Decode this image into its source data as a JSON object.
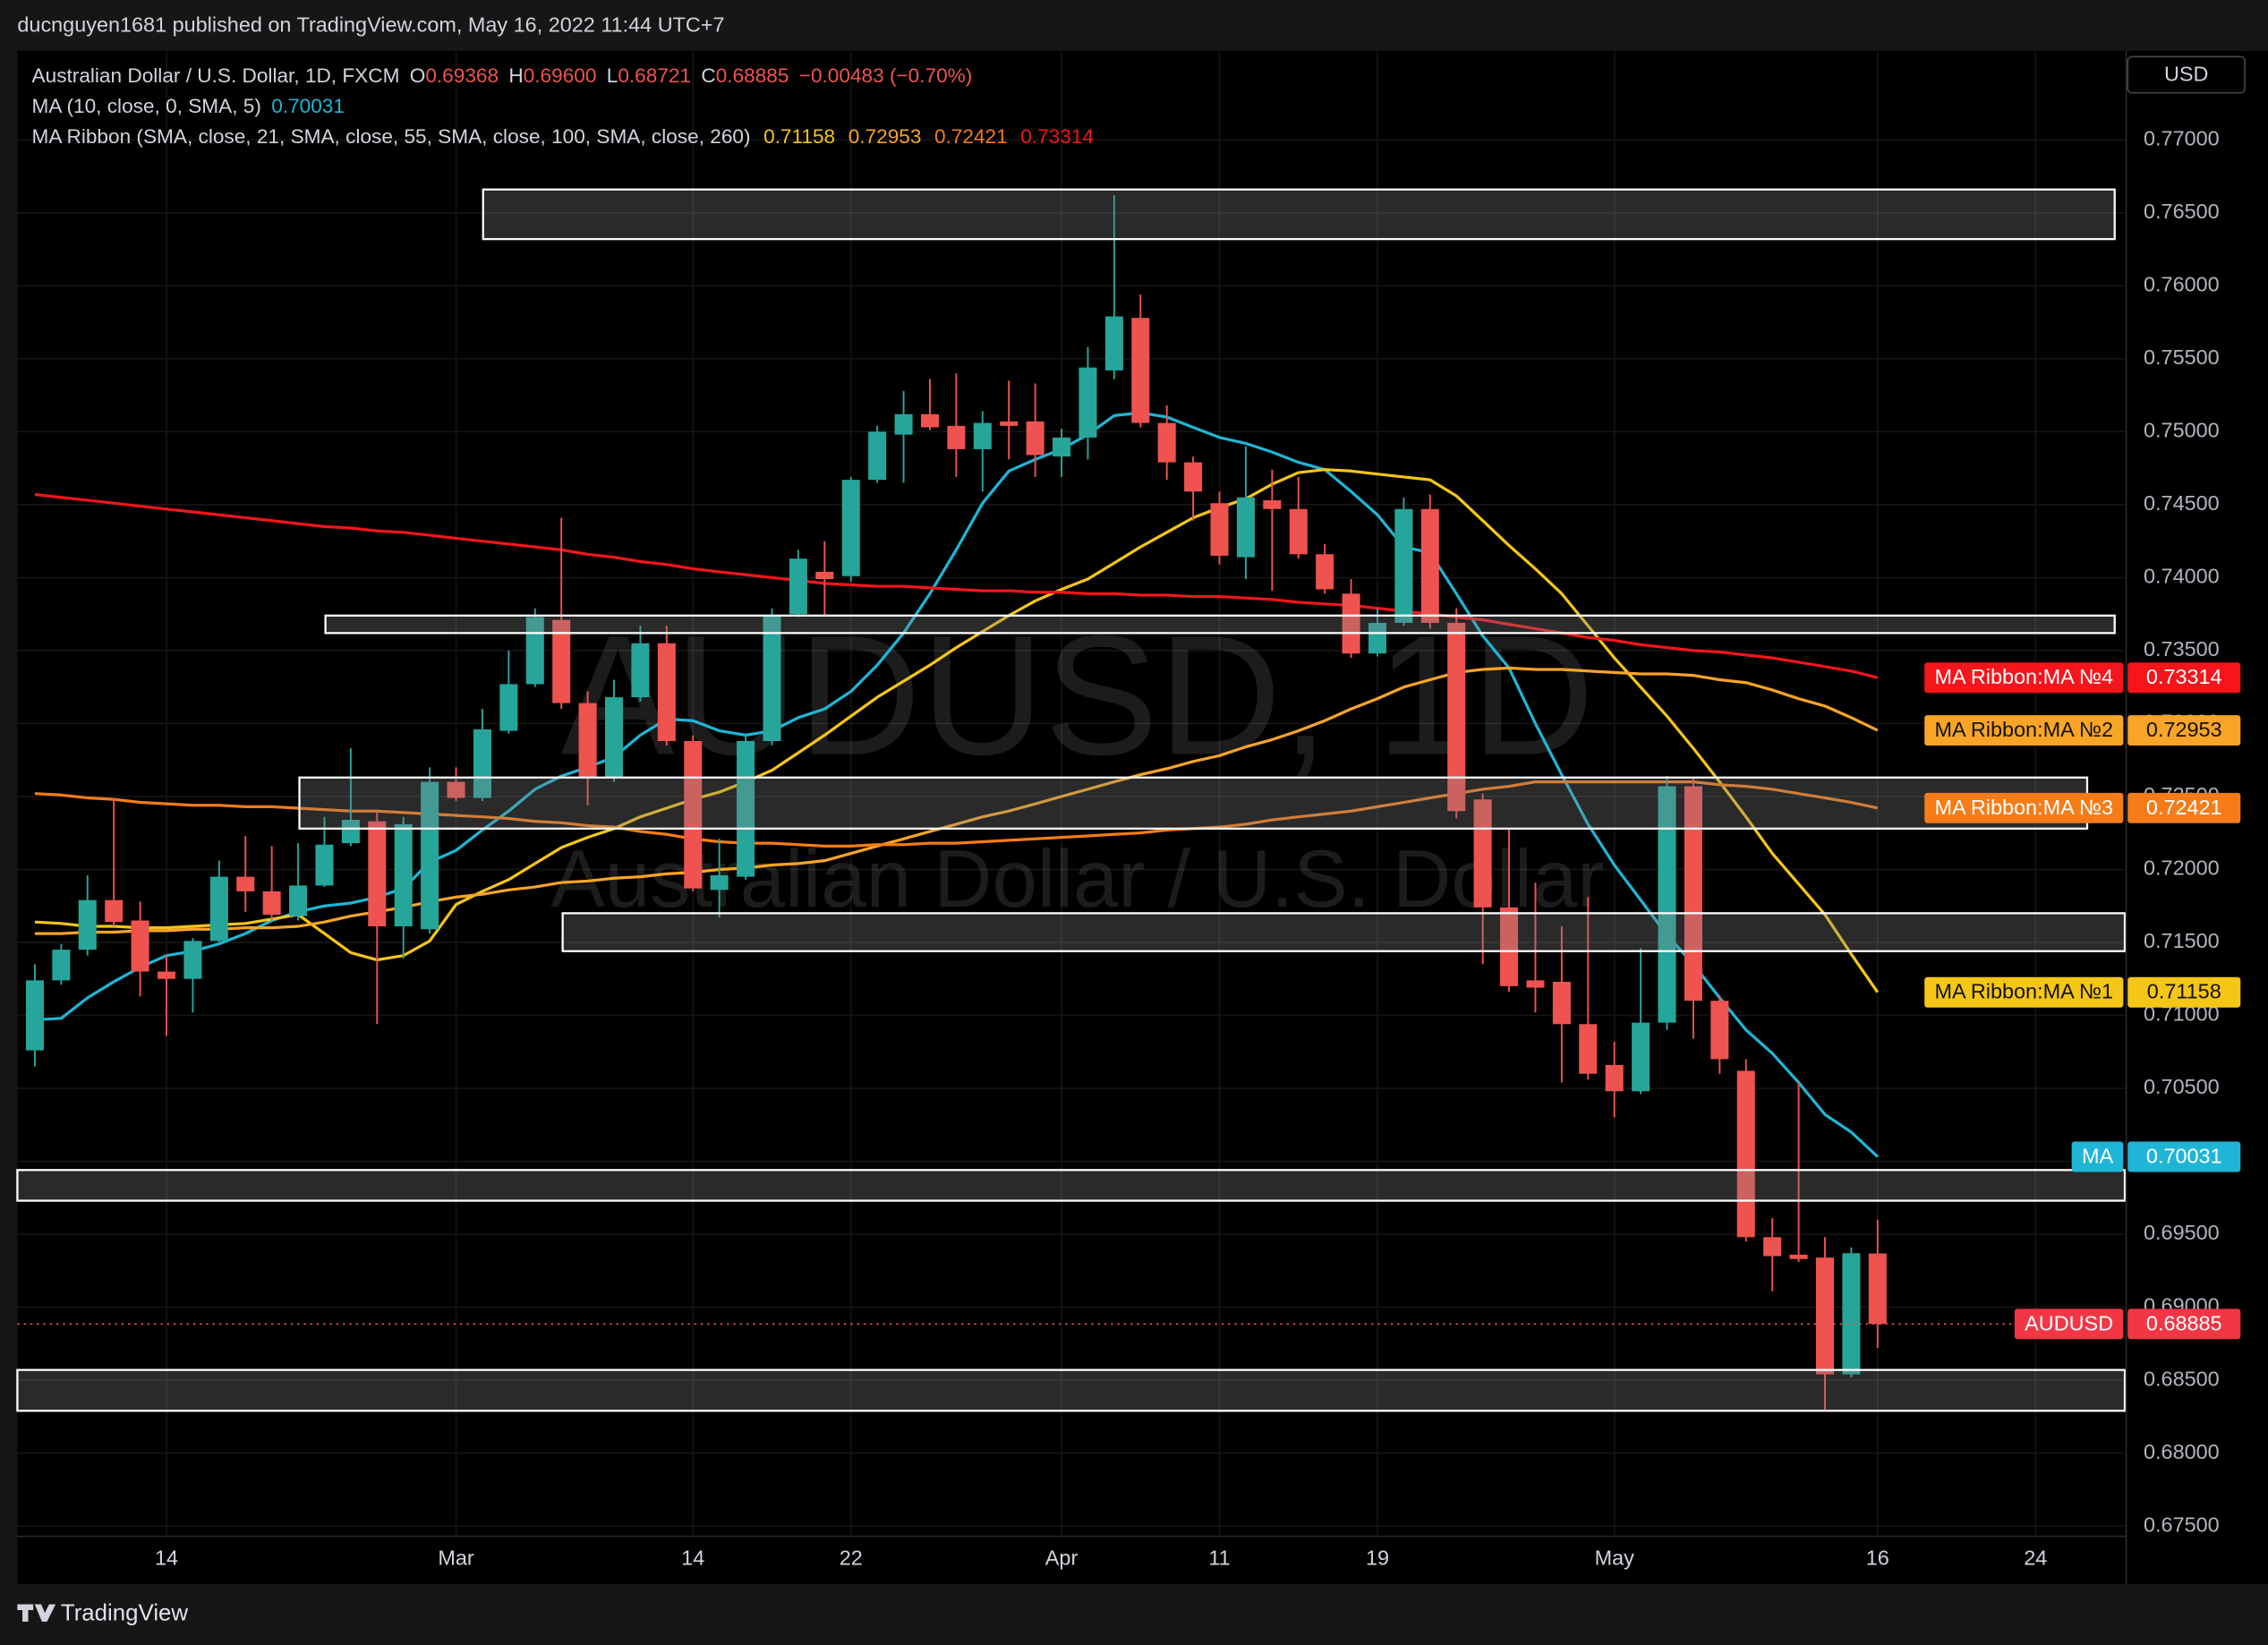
{
  "publisher_line": "ducnguyen1681 published on TradingView.com, May 16, 2022 11:44 UTC+7",
  "footer_brand": "TradingView",
  "chart_data": {
    "type": "candlestick",
    "title": "Australian Dollar / U.S. Dollar, 1D, FXCM",
    "symbol": "AUDUSD",
    "currency": "USD",
    "watermark": "AUDUSD, 1D",
    "watermark_subtitle": "Australian Dollar / U.S. Dollar",
    "ohlc_letters": [
      "O",
      "H",
      "L",
      "C"
    ],
    "last_high_label": "0.69600",
    "change_label": "−0.00483 (−0.70%)",
    "ma_legend": "MA (10, close, 0, SMA, 5)",
    "ribbon_legend": "MA Ribbon (SMA, close, 21, SMA, close, 55, SMA, close, 100, SMA, close, 260)",
    "up_color": "#26a69a",
    "down_color": "#ef5350",
    "grid": true,
    "categories": [
      null,
      null,
      null,
      null,
      null,
      "14",
      null,
      null,
      null,
      null,
      null,
      null,
      null,
      null,
      null,
      null,
      "Mar",
      null,
      null,
      null,
      null,
      null,
      null,
      null,
      null,
      "14",
      null,
      null,
      null,
      null,
      null,
      "22",
      null,
      null,
      null,
      null,
      null,
      null,
      null,
      "Apr",
      null,
      null,
      null,
      null,
      null,
      "11",
      null,
      null,
      null,
      null,
      null,
      "19",
      null,
      null,
      null,
      null,
      null,
      null,
      null,
      null,
      "May",
      null,
      null,
      null,
      null,
      null,
      null,
      null,
      null,
      null,
      "16",
      null,
      null,
      null,
      null,
      null,
      "24",
      null,
      null,
      null
    ],
    "open": [
      0.7076,
      0.7124,
      0.7145,
      0.7179,
      0.7165,
      0.713,
      0.7125,
      0.7151,
      0.7195,
      0.7185,
      0.7168,
      0.7189,
      0.7218,
      0.7233,
      0.7161,
      0.7159,
      0.726,
      0.7249,
      0.7295,
      0.7327,
      0.7371,
      0.7314,
      0.7263,
      0.7318,
      0.7355,
      0.7288,
      0.7186,
      0.7195,
      0.7288,
      0.7375,
      0.7404,
      0.7401,
      0.7467,
      0.7498,
      0.7512,
      0.7504,
      0.7488,
      0.7507,
      0.7507,
      0.7483,
      0.7496,
      0.7542,
      0.7578,
      0.7506,
      0.7479,
      0.7451,
      0.7414,
      0.7453,
      0.7447,
      0.7416,
      0.7389,
      0.7348,
      0.7369,
      0.7447,
      0.7369,
      0.7248,
      0.7174,
      0.7124,
      0.7123,
      0.7094,
      0.7066,
      0.7048,
      0.7095,
      0.7257,
      0.711,
      0.7062,
      0.6948,
      0.6936,
      0.6934,
      0.6854,
      0.69368,
      null,
      null,
      null,
      null,
      null,
      null,
      null,
      null,
      null
    ],
    "high": [
      0.7135,
      0.7149,
      0.7196,
      0.7249,
      0.7178,
      0.7141,
      0.7153,
      0.7206,
      0.7223,
      0.7216,
      0.7218,
      0.7236,
      0.7283,
      0.724,
      0.7236,
      0.727,
      0.727,
      0.731,
      0.735,
      0.7379,
      0.7441,
      0.7322,
      0.733,
      0.7367,
      0.7367,
      0.7292,
      0.7221,
      0.7293,
      0.7379,
      0.7419,
      0.7425,
      0.7469,
      0.7504,
      0.7528,
      0.7536,
      0.754,
      0.7514,
      0.7535,
      0.7533,
      0.7502,
      0.7558,
      0.7662,
      0.7594,
      0.7518,
      0.7483,
      0.7459,
      0.749,
      0.7474,
      0.7469,
      0.7423,
      0.7399,
      0.7379,
      0.7455,
      0.7457,
      0.7379,
      0.7252,
      0.7228,
      0.7191,
      0.7161,
      0.7181,
      0.7082,
      0.7146,
      0.7264,
      0.7263,
      0.7114,
      0.707,
      0.6961,
      0.7054,
      0.6948,
      0.6941,
      0.696,
      null,
      null,
      null,
      null,
      null,
      null,
      null,
      null,
      null
    ],
    "low": [
      0.7065,
      0.7121,
      0.7141,
      0.7161,
      0.7113,
      0.7086,
      0.7102,
      0.7149,
      0.7171,
      0.7165,
      0.7165,
      0.7188,
      0.7216,
      0.7094,
      0.7139,
      0.7156,
      0.7247,
      0.7247,
      0.7293,
      0.7325,
      0.731,
      0.7244,
      0.726,
      0.7315,
      0.7285,
      0.7185,
      0.7167,
      0.7193,
      0.7285,
      0.7373,
      0.7374,
      0.7397,
      0.7465,
      0.7465,
      0.7501,
      0.7469,
      0.7459,
      0.7481,
      0.7469,
      0.7469,
      0.7481,
      0.7536,
      0.7503,
      0.7467,
      0.7439,
      0.7409,
      0.7399,
      0.7391,
      0.7413,
      0.7389,
      0.7345,
      0.7346,
      0.7367,
      0.7365,
      0.7235,
      0.7135,
      0.7116,
      0.7102,
      0.7054,
      0.7056,
      0.703,
      0.7046,
      0.709,
      0.7084,
      0.706,
      0.6945,
      0.6911,
      0.6931,
      0.6829,
      0.6852,
      0.68721,
      null,
      null,
      null,
      null,
      null,
      null,
      null,
      null,
      null
    ],
    "close": [
      0.7124,
      0.7145,
      0.7179,
      0.7164,
      0.713,
      0.7125,
      0.7151,
      0.7195,
      0.7185,
      0.7169,
      0.7189,
      0.7217,
      0.7234,
      0.7161,
      0.7231,
      0.726,
      0.7249,
      0.7296,
      0.7327,
      0.7373,
      0.7314,
      0.7263,
      0.7318,
      0.7355,
      0.7288,
      0.7187,
      0.7196,
      0.7288,
      0.7374,
      0.7413,
      0.7399,
      0.7467,
      0.75,
      0.7512,
      0.7503,
      0.7488,
      0.7506,
      0.7504,
      0.7484,
      0.7496,
      0.7544,
      0.7579,
      0.7506,
      0.7479,
      0.7459,
      0.7415,
      0.7455,
      0.7447,
      0.7416,
      0.7392,
      0.7348,
      0.7369,
      0.7447,
      0.7369,
      0.724,
      0.7174,
      0.712,
      0.7119,
      0.7094,
      0.706,
      0.7048,
      0.7095,
      0.7257,
      0.711,
      0.707,
      0.6948,
      0.6935,
      0.6933,
      0.6854,
      0.6937,
      0.68885,
      null,
      null,
      null,
      null,
      null,
      null,
      null,
      null,
      null
    ],
    "series": [
      {
        "name": "MA",
        "color": "#1fb5d6",
        "values": [
          0.7097,
          0.7098,
          0.7112,
          0.7123,
          0.7133,
          0.7141,
          0.7144,
          0.7149,
          0.7156,
          0.7165,
          0.7171,
          0.7175,
          0.7177,
          0.7181,
          0.7187,
          0.7205,
          0.7213,
          0.7227,
          0.724,
          0.7255,
          0.7264,
          0.727,
          0.7277,
          0.7292,
          0.7303,
          0.7302,
          0.7295,
          0.7292,
          0.7295,
          0.7304,
          0.731,
          0.7322,
          0.734,
          0.7362,
          0.7389,
          0.7419,
          0.7451,
          0.7473,
          0.7481,
          0.7488,
          0.7498,
          0.7511,
          0.7513,
          0.751,
          0.7503,
          0.7496,
          0.7492,
          0.7486,
          0.7479,
          0.7474,
          0.7459,
          0.7443,
          0.7421,
          0.7417,
          0.7389,
          0.736,
          0.7338,
          0.73,
          0.7265,
          0.7231,
          0.7203,
          0.7179,
          0.7155,
          0.7135,
          0.7112,
          0.709,
          0.7074,
          0.7054,
          0.7032,
          0.702,
          0.70031,
          null,
          null,
          null,
          null,
          null,
          null,
          null,
          null,
          null
        ]
      },
      {
        "name": "MA Ribbon:MA №1",
        "color": "#f5c518",
        "values": [
          0.7164,
          0.7163,
          0.7161,
          0.7161,
          0.716,
          0.716,
          0.7161,
          0.7162,
          0.7163,
          0.7166,
          0.7169,
          0.7156,
          0.7143,
          0.7138,
          0.7141,
          0.7151,
          0.7176,
          0.7185,
          0.7193,
          0.7204,
          0.7215,
          0.7222,
          0.7228,
          0.7236,
          0.7242,
          0.7248,
          0.7253,
          0.726,
          0.7268,
          0.728,
          0.7292,
          0.7305,
          0.7318,
          0.7329,
          0.734,
          0.7352,
          0.7363,
          0.7374,
          0.7384,
          0.7392,
          0.7399,
          0.741,
          0.7421,
          0.7431,
          0.7441,
          0.7448,
          0.7454,
          0.7464,
          0.7472,
          0.7474,
          0.7473,
          0.7471,
          0.7469,
          0.7467,
          0.7456,
          0.7439,
          0.7422,
          0.7406,
          0.7389,
          0.7367,
          0.7345,
          0.7325,
          0.7305,
          0.7283,
          0.726,
          0.7236,
          0.7211,
          0.719,
          0.7169,
          0.7142,
          0.71158,
          null,
          null,
          null,
          null,
          null,
          null,
          null,
          null,
          null
        ]
      },
      {
        "name": "MA Ribbon:MA №2",
        "color": "#f8a427",
        "values": [
          0.7156,
          0.7156,
          0.7157,
          0.7157,
          0.7158,
          0.7158,
          0.7159,
          0.7159,
          0.716,
          0.716,
          0.7161,
          0.7164,
          0.7168,
          0.7171,
          0.7174,
          0.7178,
          0.7181,
          0.7183,
          0.7186,
          0.7188,
          0.7191,
          0.7192,
          0.7194,
          0.7195,
          0.7197,
          0.7198,
          0.72,
          0.7201,
          0.7203,
          0.7204,
          0.7206,
          0.7211,
          0.7216,
          0.7221,
          0.7226,
          0.7231,
          0.7236,
          0.724,
          0.7245,
          0.725,
          0.7255,
          0.726,
          0.7265,
          0.7269,
          0.7274,
          0.7278,
          0.7284,
          0.7289,
          0.7295,
          0.7302,
          0.731,
          0.7317,
          0.7325,
          0.733,
          0.7335,
          0.7337,
          0.7338,
          0.7337,
          0.7337,
          0.7336,
          0.7335,
          0.7334,
          0.7334,
          0.7333,
          0.733,
          0.7328,
          0.7323,
          0.7317,
          0.7312,
          0.7304,
          0.72953,
          null,
          null,
          null,
          null,
          null,
          null,
          null,
          null,
          null
        ]
      },
      {
        "name": "MA Ribbon:MA №3",
        "color": "#f57c18",
        "values": [
          0.7252,
          0.7251,
          0.7249,
          0.7248,
          0.7246,
          0.7245,
          0.7244,
          0.7244,
          0.7243,
          0.7243,
          0.7242,
          0.7241,
          0.724,
          0.724,
          0.7239,
          0.7238,
          0.7237,
          0.7236,
          0.7235,
          0.7233,
          0.7232,
          0.723,
          0.7229,
          0.7226,
          0.7224,
          0.7221,
          0.7219,
          0.7218,
          0.7218,
          0.7217,
          0.7216,
          0.7216,
          0.7217,
          0.7217,
          0.7218,
          0.7218,
          0.7219,
          0.722,
          0.7221,
          0.7222,
          0.7223,
          0.7224,
          0.7225,
          0.7227,
          0.7228,
          0.7229,
          0.7231,
          0.7234,
          0.7236,
          0.7238,
          0.724,
          0.7243,
          0.7246,
          0.7249,
          0.7252,
          0.7255,
          0.7257,
          0.726,
          0.726,
          0.726,
          0.726,
          0.726,
          0.726,
          0.726,
          0.7258,
          0.7257,
          0.7255,
          0.7252,
          0.7249,
          0.7246,
          0.72421,
          null,
          null,
          null,
          null,
          null,
          null,
          null,
          null,
          null
        ]
      },
      {
        "name": "MA Ribbon:MA №4",
        "color": "#f5151b",
        "values": [
          0.7457,
          0.7455,
          0.7453,
          0.7451,
          0.7449,
          0.7447,
          0.7445,
          0.7443,
          0.7441,
          0.7439,
          0.7437,
          0.7435,
          0.7434,
          0.7432,
          0.7431,
          0.7429,
          0.7427,
          0.7425,
          0.7423,
          0.7421,
          0.7419,
          0.7416,
          0.7414,
          0.7411,
          0.7409,
          0.7406,
          0.7404,
          0.7402,
          0.74,
          0.7398,
          0.7396,
          0.7395,
          0.7394,
          0.7394,
          0.7393,
          0.7392,
          0.7391,
          0.7391,
          0.739,
          0.739,
          0.7389,
          0.7389,
          0.7388,
          0.7388,
          0.7387,
          0.7387,
          0.7386,
          0.7385,
          0.7383,
          0.7382,
          0.7381,
          0.7379,
          0.7377,
          0.7375,
          0.7373,
          0.7371,
          0.7368,
          0.7365,
          0.7362,
          0.7359,
          0.7357,
          0.7354,
          0.7352,
          0.735,
          0.7349,
          0.7347,
          0.7345,
          0.7342,
          0.7339,
          0.7336,
          0.73314,
          null,
          null,
          null,
          null,
          null,
          null,
          null,
          null,
          null
        ]
      }
    ],
    "zones": [
      {
        "top": 0.7666,
        "bottom": 0.7632
      },
      {
        "top": 0.7374,
        "bottom": 0.7362
      },
      {
        "top": 0.7263,
        "bottom": 0.7228
      },
      {
        "top": 0.717,
        "bottom": 0.7144
      },
      {
        "top": 0.6994,
        "bottom": 0.6973
      },
      {
        "top": 0.6857,
        "bottom": 0.6829
      }
    ],
    "ylim": [
      0.6743,
      0.7761
    ],
    "yticks": [
      {
        "value": 0.675,
        "label": "0.67500"
      },
      {
        "value": 0.68,
        "label": "0.68000"
      },
      {
        "value": 0.685,
        "label": "0.68500"
      },
      {
        "value": 0.69,
        "label": "0.69000"
      },
      {
        "value": 0.695,
        "label": "0.69500"
      },
      {
        "value": 0.7,
        "label": "0.70000"
      },
      {
        "value": 0.705,
        "label": "0.70500"
      },
      {
        "value": 0.71,
        "label": "0.71000"
      },
      {
        "value": 0.715,
        "label": "0.71500"
      },
      {
        "value": 0.72,
        "label": "0.72000"
      },
      {
        "value": 0.725,
        "label": "0.72500"
      },
      {
        "value": 0.73,
        "label": "0.73000"
      },
      {
        "value": 0.735,
        "label": "0.73500"
      },
      {
        "value": 0.74,
        "label": "0.74000"
      },
      {
        "value": 0.745,
        "label": "0.74500"
      },
      {
        "value": 0.75,
        "label": "0.75000"
      },
      {
        "value": 0.755,
        "label": "0.75500"
      },
      {
        "value": 0.76,
        "label": "0.76000"
      },
      {
        "value": 0.765,
        "label": "0.76500"
      },
      {
        "value": 0.77,
        "label": "0.77000"
      }
    ]
  }
}
